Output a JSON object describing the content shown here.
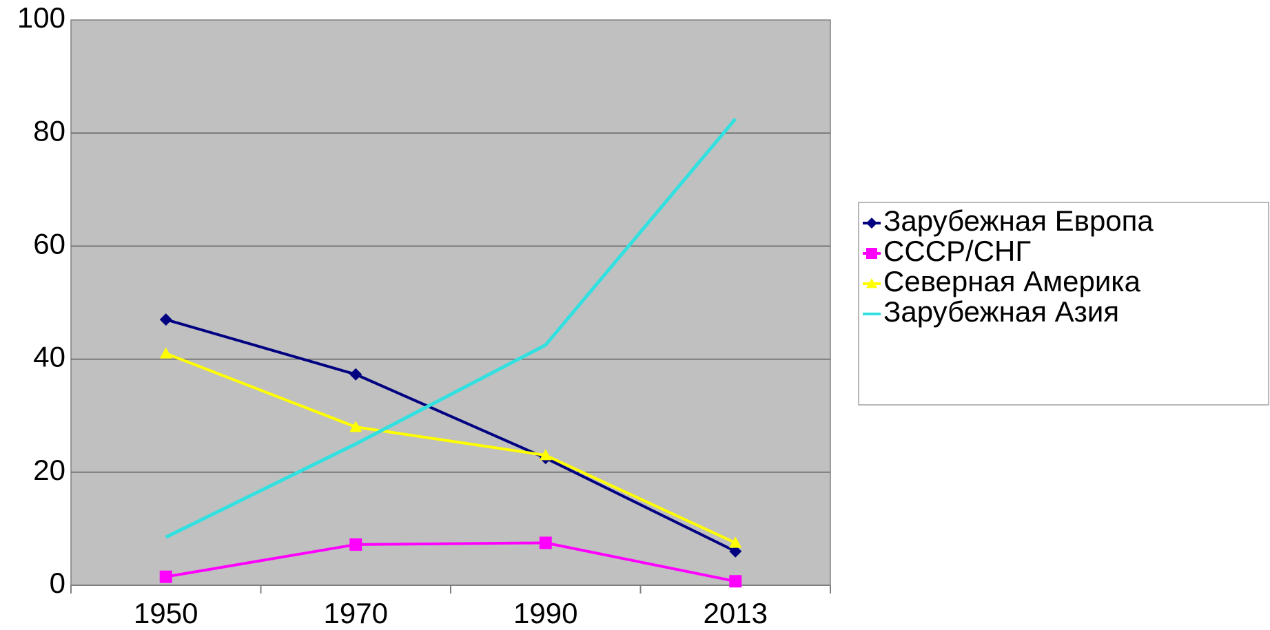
{
  "chart_data": {
    "type": "line",
    "categories": [
      "1950",
      "1970",
      "1990",
      "2013"
    ],
    "series": [
      {
        "name": "Зарубежная Европа",
        "color": "#000080",
        "marker": "diamond",
        "values": [
          47,
          37.3,
          22.5,
          6
        ]
      },
      {
        "name": "СССР/СНГ",
        "color": "#ff00ff",
        "marker": "square",
        "values": [
          1.5,
          7.2,
          7.5,
          0.7
        ]
      },
      {
        "name": "Северная Америка",
        "color": "#ffff00",
        "marker": "triangle",
        "values": [
          41,
          28,
          23,
          7.5
        ]
      },
      {
        "name": "Зарубежная Азия",
        "color": "#33e0e0",
        "marker": "none",
        "values": [
          8.5,
          25,
          42.5,
          82.5
        ]
      }
    ],
    "ylim": [
      0,
      100
    ],
    "yticks": [
      0,
      20,
      40,
      60,
      80,
      100
    ],
    "grid": true,
    "plot_background": "#c0c0c0",
    "legend": "right"
  }
}
